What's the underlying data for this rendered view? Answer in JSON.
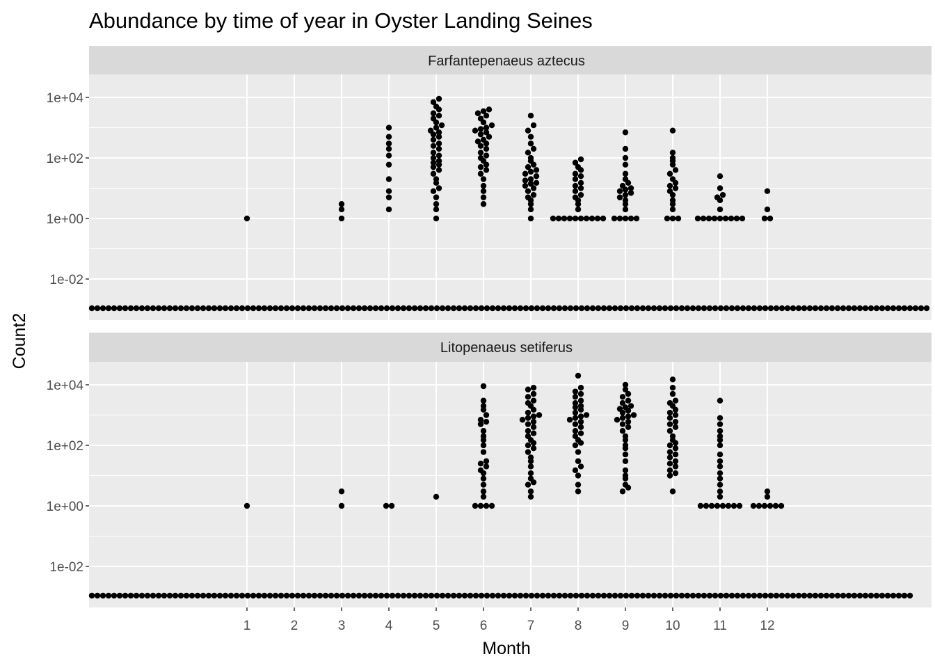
{
  "chart_data": {
    "type": "scatter",
    "subtype": "dotplot",
    "title": "Abundance by time of year in Oyster Landing Seines",
    "xlabel": "Month",
    "ylabel": "Count2",
    "y_scale": "log10",
    "x_ticks": [
      "1",
      "2",
      "3",
      "4",
      "5",
      "6",
      "7",
      "8",
      "9",
      "10",
      "11",
      "12"
    ],
    "y_ticks": [
      "1e-02",
      "1e+00",
      "1e+02",
      "1e+04"
    ],
    "grid": true,
    "facets": [
      {
        "name": "Farfantepenaeus aztecus",
        "zero_row_value": 0.001,
        "series": [
          {
            "month": 1,
            "values": [
              1
            ]
          },
          {
            "month": 3,
            "values": [
              1,
              2,
              3
            ]
          },
          {
            "month": 4,
            "values": [
              2,
              5,
              8,
              20,
              60,
              120,
              200,
              300,
              500,
              1000
            ]
          },
          {
            "month": 5,
            "values": [
              1,
              2,
              3,
              5,
              8,
              10,
              15,
              20,
              30,
              40,
              50,
              60,
              70,
              80,
              100,
              120,
              150,
              200,
              250,
              300,
              400,
              500,
              600,
              700,
              800,
              1000,
              1200,
              1500,
              2000,
              2500,
              3000,
              4000,
              5000,
              7000,
              9000
            ]
          },
          {
            "month": 6,
            "values": [
              3,
              5,
              8,
              12,
              20,
              30,
              40,
              50,
              60,
              80,
              100,
              120,
              150,
              200,
              250,
              300,
              350,
              400,
              500,
              600,
              700,
              800,
              900,
              1000,
              1200,
              1500,
              2000,
              2500,
              3000,
              3500,
              4000
            ]
          },
          {
            "month": 7,
            "values": [
              1,
              2,
              3,
              4,
              5,
              6,
              8,
              10,
              12,
              14,
              15,
              18,
              20,
              25,
              30,
              35,
              40,
              50,
              60,
              80,
              100,
              150,
              200,
              300,
              500,
              800,
              1200,
              2500
            ]
          },
          {
            "month": 8,
            "values": [
              1,
              1,
              1,
              1,
              1,
              1,
              1,
              1,
              1,
              1,
              2,
              3,
              4,
              5,
              6,
              8,
              10,
              12,
              15,
              20,
              25,
              30,
              40,
              50,
              70,
              90
            ]
          },
          {
            "month": 9,
            "values": [
              1,
              1,
              1,
              1,
              1,
              2,
              3,
              4,
              5,
              6,
              7,
              8,
              9,
              10,
              12,
              15,
              20,
              30,
              60,
              100,
              200,
              700
            ]
          },
          {
            "month": 10,
            "values": [
              1,
              1,
              1,
              2,
              3,
              4,
              6,
              8,
              10,
              12,
              15,
              20,
              30,
              40,
              60,
              80,
              100,
              150,
              800
            ]
          },
          {
            "month": 11,
            "values": [
              1,
              1,
              1,
              1,
              1,
              1,
              1,
              1,
              1,
              2,
              4,
              5,
              6,
              10,
              25
            ]
          },
          {
            "month": 12,
            "values": [
              1,
              1,
              2,
              8
            ]
          }
        ]
      },
      {
        "name": "Litopenaeus setiferus",
        "zero_row_value": 0.001,
        "series": [
          {
            "month": 1,
            "values": [
              1
            ]
          },
          {
            "month": 3,
            "values": [
              1,
              3
            ]
          },
          {
            "month": 4,
            "values": [
              1,
              1
            ]
          },
          {
            "month": 5,
            "values": [
              2
            ]
          },
          {
            "month": 6,
            "values": [
              1,
              1,
              1,
              1,
              2,
              3,
              5,
              8,
              12,
              15,
              20,
              25,
              30,
              60,
              100,
              150,
              200,
              300,
              500,
              600,
              700,
              1000,
              1500,
              2000,
              3000,
              9000
            ]
          },
          {
            "month": 7,
            "values": [
              2,
              3,
              5,
              6,
              8,
              12,
              20,
              30,
              40,
              60,
              80,
              100,
              120,
              150,
              200,
              250,
              300,
              400,
              500,
              600,
              700,
              800,
              900,
              1000,
              1200,
              1500,
              2000,
              2500,
              3000,
              4000,
              5000,
              7000,
              8000
            ]
          },
          {
            "month": 8,
            "values": [
              3,
              5,
              10,
              15,
              20,
              30,
              60,
              100,
              120,
              150,
              200,
              250,
              300,
              400,
              500,
              600,
              700,
              800,
              900,
              1000,
              1200,
              1500,
              1800,
              2000,
              2500,
              3000,
              4000,
              5000,
              6000,
              8000,
              20000
            ]
          },
          {
            "month": 9,
            "values": [
              3,
              4,
              5,
              8,
              10,
              15,
              30,
              50,
              80,
              100,
              150,
              200,
              300,
              400,
              500,
              600,
              700,
              800,
              900,
              1000,
              1200,
              1400,
              1600,
              1800,
              2000,
              2500,
              3000,
              4000,
              5000,
              7000,
              10000
            ]
          },
          {
            "month": 10,
            "values": [
              3,
              10,
              12,
              15,
              20,
              25,
              30,
              40,
              50,
              60,
              80,
              100,
              120,
              150,
              200,
              300,
              400,
              500,
              600,
              800,
              1000,
              1200,
              1500,
              2000,
              2500,
              3000,
              5000,
              8000,
              15000
            ]
          },
          {
            "month": 11,
            "values": [
              1,
              1,
              1,
              1,
              1,
              1,
              1,
              1,
              2,
              3,
              5,
              8,
              12,
              20,
              30,
              50,
              100,
              150,
              200,
              300,
              500,
              800,
              3000
            ]
          },
          {
            "month": 12,
            "values": [
              1,
              1,
              1,
              1,
              1,
              1,
              2,
              3
            ]
          }
        ]
      }
    ]
  }
}
